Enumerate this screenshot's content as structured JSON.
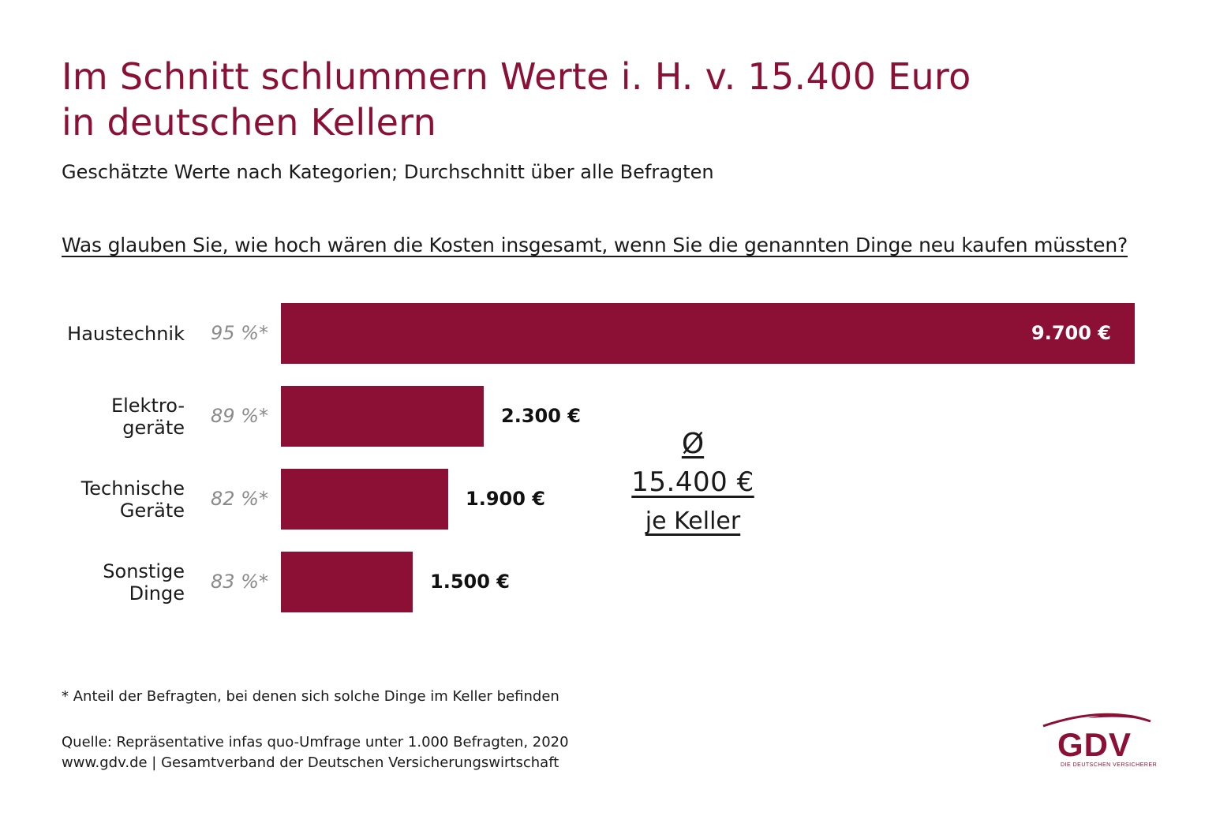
{
  "header": {
    "title_line1": "Im Schnitt schlummern Werte i. H. v. 15.400 Euro",
    "title_line2": "in deutschen Kellern",
    "subtitle": "Geschätzte Werte nach Kategorien; Durchschnitt über alle Befragten",
    "question": "Was glauben Sie, wie hoch wären die Kosten insgesamt, wenn Sie die genannten Dinge neu kaufen müssten?"
  },
  "chart_data": {
    "type": "bar",
    "orientation": "horizontal",
    "categories": [
      "Haustechnik",
      "Elektrogeräte",
      "Technische Geräte",
      "Sonstige Dinge"
    ],
    "values": [
      9700,
      2300,
      1900,
      1500
    ],
    "unit": "€",
    "grid": false,
    "legend": "none"
  },
  "bars": [
    {
      "label_lines": [
        "Haustechnik"
      ],
      "share": "95 %*",
      "value": 9700,
      "value_label": "9.700 €"
    },
    {
      "label_lines": [
        "Elektro-",
        "geräte"
      ],
      "share": "89 %*",
      "value": 2300,
      "value_label": "2.300 €"
    },
    {
      "label_lines": [
        "Technische",
        "Geräte"
      ],
      "share": "82 %*",
      "value": 1900,
      "value_label": "1.900 €"
    },
    {
      "label_lines": [
        "Sonstige",
        "Dinge"
      ],
      "share": "83 %*",
      "value": 1500,
      "value_label": "1.500 €"
    }
  ],
  "average": {
    "symbol": "Ø",
    "amount": "15.400 €",
    "unit": "je Keller"
  },
  "footnote": "* Anteil der Befragten, bei denen sich solche Dinge im Keller befinden",
  "source_line1": "Quelle: Repräsentative infas quo-Umfrage unter 1.000 Befragten, 2020",
  "source_line2": "www.gdv.de | Gesamtverband der Deutschen Versicherungswirtschaft",
  "logo": {
    "text": "GDV",
    "tagline": "DIE DEUTSCHEN VERSICHERER"
  },
  "colors": {
    "accent": "#8c1035",
    "share_text": "#8a8a8a"
  }
}
